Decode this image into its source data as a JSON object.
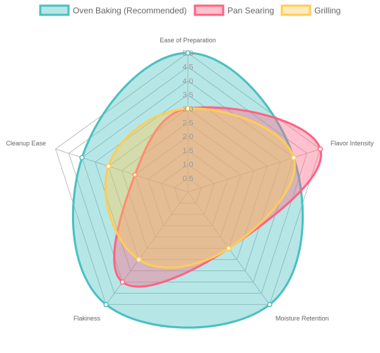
{
  "chart_data": {
    "type": "radar",
    "axes": [
      "Ease of Preparation",
      "Flavor Intensity",
      "Moisture Retention",
      "Flakiness",
      "Cleanup Ease"
    ],
    "ticks": [
      "0.5",
      "1.0",
      "1.5",
      "2.0",
      "2.5",
      "3.0",
      "3.5",
      "4.0",
      "4.5",
      "5.0"
    ],
    "range": [
      0,
      5
    ],
    "legend_position": "top",
    "grid": true,
    "series": [
      {
        "name": "Oven Baking (Recommended)",
        "values": [
          5.0,
          4.0,
          5.0,
          5.0,
          4.0
        ],
        "border_color": "#4bc0c0",
        "fill_color": "#4bc0c066"
      },
      {
        "name": "Pan Searing",
        "values": [
          3.0,
          5.0,
          2.5,
          4.0,
          2.0
        ],
        "border_color": "#ff6384",
        "fill_color": "#ff638466"
      },
      {
        "name": "Grilling",
        "values": [
          3.0,
          4.0,
          2.5,
          3.0,
          3.0
        ],
        "border_color": "#ffcd56",
        "fill_color": "#ffcd5666"
      }
    ]
  }
}
